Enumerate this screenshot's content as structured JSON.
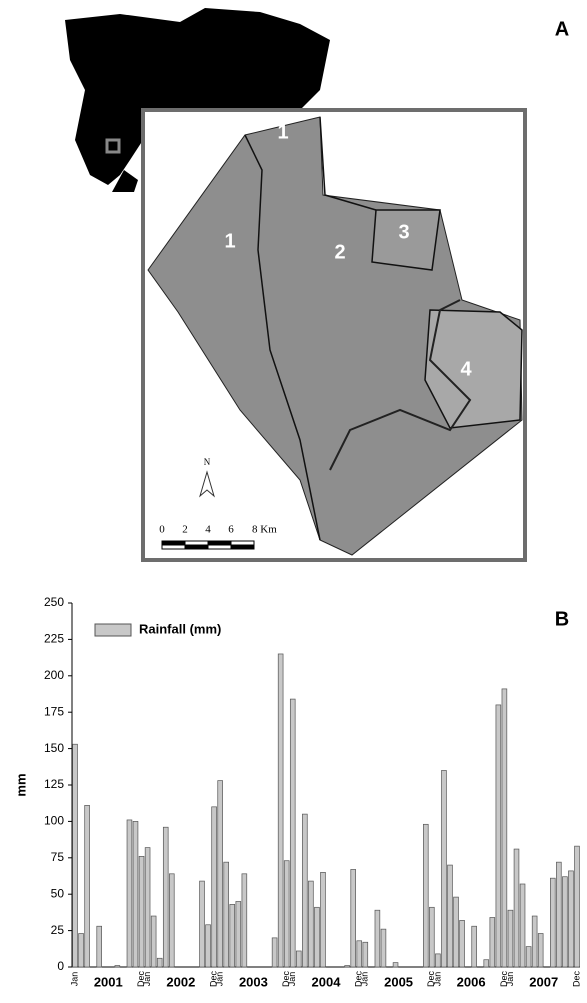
{
  "panel_a": {
    "label": "A",
    "zone_labels": [
      "1",
      "1",
      "2",
      "3",
      "4"
    ],
    "north": "N",
    "scale_ticks": [
      "0",
      "2",
      "4",
      "6",
      "8 Km"
    ]
  },
  "chart_data": {
    "type": "bar",
    "panel_label": "B",
    "ylabel": "mm",
    "categories": [
      "Jan",
      null,
      null,
      null,
      null,
      null,
      null,
      null,
      null,
      null,
      null,
      "Dec",
      "Jan",
      null,
      null,
      null,
      null,
      null,
      null,
      null,
      null,
      null,
      null,
      "Dec",
      "Jan",
      null,
      null,
      null,
      null,
      null,
      null,
      null,
      null,
      null,
      null,
      "Dec",
      "Jan",
      null,
      null,
      null,
      null,
      null,
      null,
      null,
      null,
      null,
      null,
      "Dec",
      "Jan",
      null,
      null,
      null,
      null,
      null,
      null,
      null,
      null,
      null,
      null,
      "Dec",
      "Jan",
      null,
      null,
      null,
      null,
      null,
      null,
      null,
      null,
      null,
      null,
      "Dec",
      "Jan",
      null,
      null,
      null,
      null,
      null,
      null,
      null,
      null,
      null,
      null,
      "Dec"
    ],
    "year_labels": [
      "2001",
      "2002",
      "2003",
      "2004",
      "2005",
      "2006",
      "2007"
    ],
    "series": [
      {
        "name": "Rainfall (mm)",
        "color": "#c8c8c8",
        "values": [
          153,
          23,
          111,
          0,
          28,
          0,
          0,
          1,
          0,
          101,
          100,
          76,
          82,
          35,
          6,
          96,
          64,
          0,
          0,
          0,
          0,
          59,
          29,
          110,
          128,
          72,
          43,
          45,
          64,
          0,
          0,
          0,
          0,
          20,
          215,
          73,
          184,
          11,
          105,
          59,
          41,
          65,
          0,
          0,
          0,
          1,
          67,
          18,
          17,
          0,
          39,
          26,
          0,
          3,
          0,
          0,
          0,
          0,
          98,
          41,
          9,
          135,
          70,
          48,
          32,
          0,
          28,
          0,
          5,
          34,
          180,
          191,
          39,
          81,
          57,
          14,
          35,
          23,
          0,
          61,
          72,
          62,
          66,
          83
        ]
      }
    ],
    "ylim": [
      0,
      250
    ],
    "yticks": [
      0,
      25,
      50,
      75,
      100,
      125,
      150,
      175,
      200,
      225,
      250
    ],
    "legend": "top-left"
  }
}
